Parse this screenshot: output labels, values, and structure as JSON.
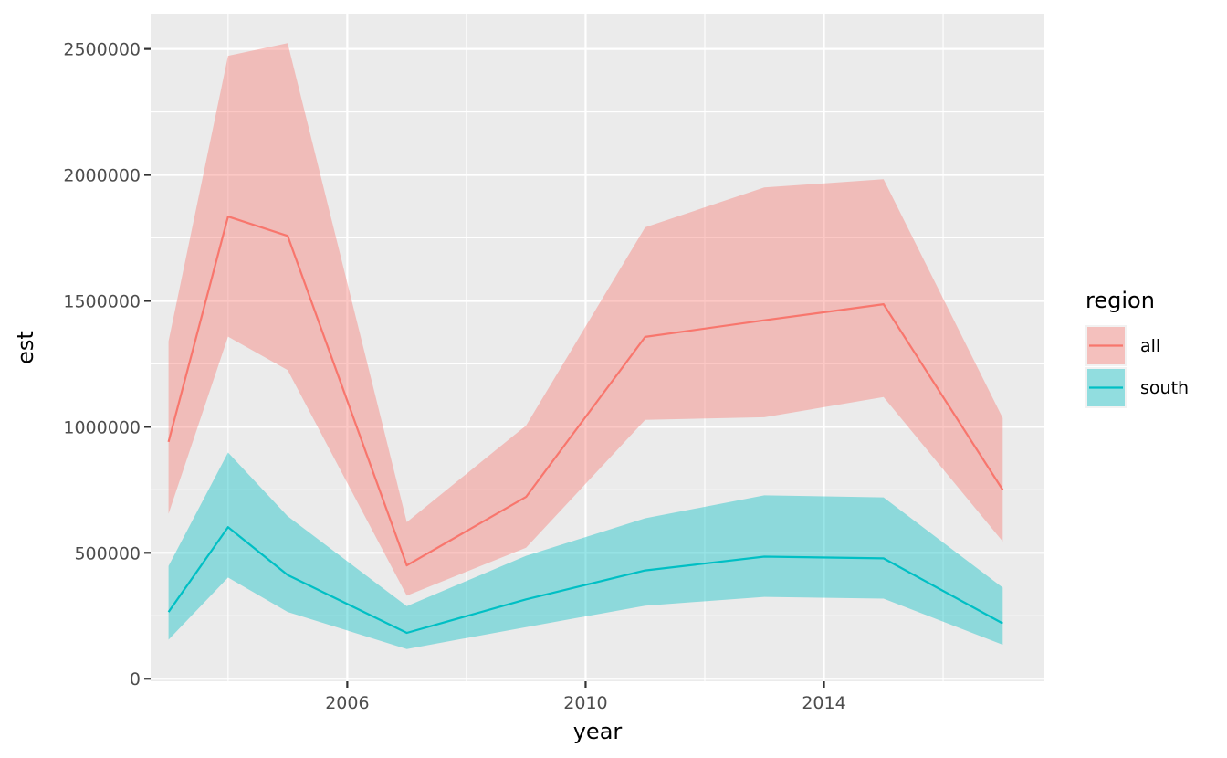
{
  "chart_data": {
    "type": "line",
    "xlabel": "year",
    "ylabel": "est",
    "xlim": [
      2002.7,
      2017.7
    ],
    "ylim": [
      -10000,
      2640000
    ],
    "x_ticks": [
      2006,
      2010,
      2014
    ],
    "x_minor_ticks": [
      2004,
      2008,
      2012,
      2016
    ],
    "y_ticks": [
      0,
      500000,
      1000000,
      1500000,
      2000000,
      2500000
    ],
    "y_tick_labels": [
      "0",
      "500000",
      "1000000",
      "1500000",
      "2000000",
      "2500000"
    ],
    "grid": true,
    "legend": {
      "title": "region",
      "placement": "right"
    },
    "series": [
      {
        "name": "all",
        "color": "#F8766D",
        "x": [
          2003,
          2004,
          2005,
          2007,
          2009,
          2011,
          2013,
          2015,
          2017
        ],
        "y": [
          940000,
          1835000,
          1758000,
          450000,
          722000,
          1357000,
          1423000,
          1487000,
          750000
        ],
        "lower": [
          655000,
          1358000,
          1225000,
          330000,
          520000,
          1028000,
          1038000,
          1118000,
          545000
        ],
        "upper": [
          1340000,
          2473000,
          2523000,
          622000,
          1005000,
          1792000,
          1950000,
          1983000,
          1035000
        ]
      },
      {
        "name": "south",
        "color": "#00BFC4",
        "x": [
          2003,
          2004,
          2005,
          2007,
          2009,
          2011,
          2013,
          2015,
          2017
        ],
        "y": [
          265000,
          602000,
          412000,
          182000,
          315000,
          430000,
          485000,
          478000,
          220000
        ],
        "lower": [
          155000,
          402000,
          265000,
          118000,
          205000,
          290000,
          325000,
          318000,
          135000
        ],
        "upper": [
          448000,
          898000,
          645000,
          288000,
          488000,
          637000,
          728000,
          720000,
          362000
        ]
      }
    ]
  }
}
